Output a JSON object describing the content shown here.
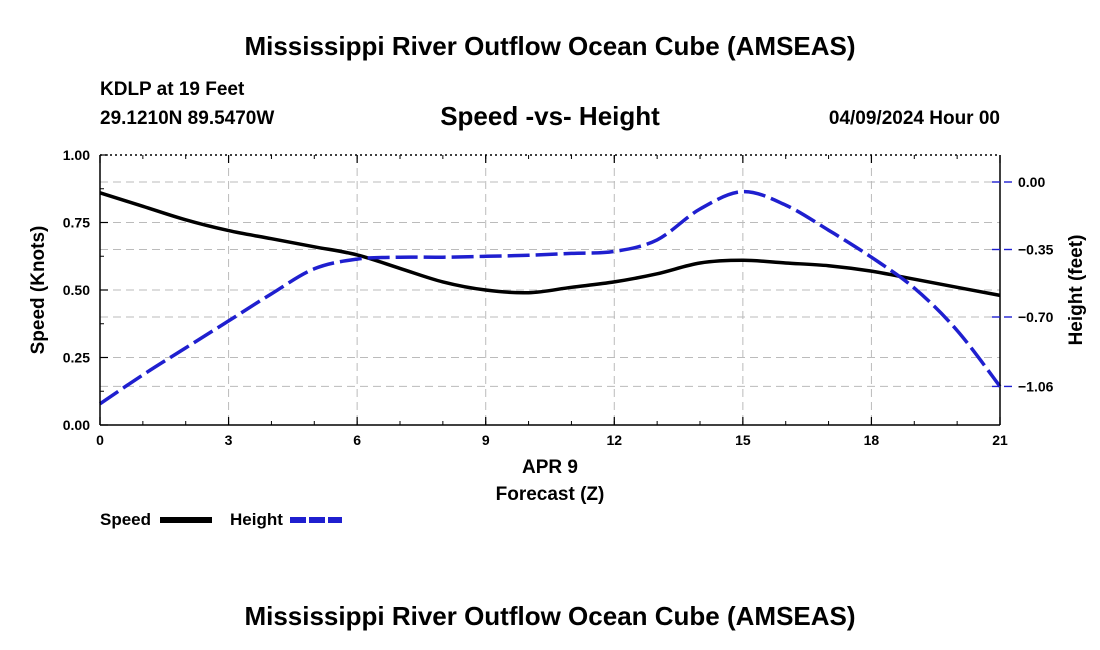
{
  "page": {
    "title_top": "Mississippi River Outflow Ocean Cube (AMSEAS)",
    "title_bottom": "Mississippi River Outflow Ocean Cube (AMSEAS)",
    "station": "KDLP at 19 Feet",
    "location": "29.1210N  89.5470W",
    "datetime": "04/09/2024 Hour 00"
  },
  "chart_data": {
    "type": "line",
    "title": "Speed -vs- Height",
    "xlabel_date": "APR 9",
    "xlabel": "Forecast (Z)",
    "ylabel": "Speed (Knots)",
    "y2label": "Height (feet)",
    "x_ticks": [
      "0",
      "3",
      "6",
      "9",
      "12",
      "15",
      "18",
      "21"
    ],
    "y_ticks": [
      "0.00",
      "0.25",
      "0.50",
      "0.75",
      "1.00"
    ],
    "y2_ticks": [
      "0.00",
      "−0.35",
      "−0.70",
      "−1.06"
    ],
    "y2_tick_values": [
      0.0,
      -0.35,
      -0.7,
      -1.06
    ],
    "xlim": [
      0,
      21
    ],
    "ylim": [
      0,
      1
    ],
    "y2lim": [
      -1.26,
      0.14
    ],
    "grid": true,
    "legend_position": "bottom-left",
    "series": [
      {
        "name": "Speed",
        "axis": "left",
        "color": "#000000",
        "style": "solid",
        "x": [
          0,
          1,
          2,
          3,
          4,
          5,
          6,
          7,
          8,
          9,
          10,
          11,
          12,
          13,
          14,
          15,
          16,
          17,
          18,
          19,
          20,
          21
        ],
        "values": [
          0.86,
          0.81,
          0.76,
          0.72,
          0.69,
          0.66,
          0.63,
          0.58,
          0.53,
          0.5,
          0.49,
          0.51,
          0.53,
          0.56,
          0.6,
          0.61,
          0.6,
          0.59,
          0.57,
          0.54,
          0.51,
          0.48
        ]
      },
      {
        "name": "Height",
        "axis": "right",
        "color": "#1f1fcf",
        "style": "dashed",
        "x": [
          0,
          1,
          2,
          3,
          4,
          5,
          6,
          7,
          8,
          9,
          10,
          11,
          12,
          13,
          14,
          15,
          16,
          17,
          18,
          19,
          20,
          21
        ],
        "values": [
          -1.15,
          -1.0,
          -0.86,
          -0.72,
          -0.58,
          -0.45,
          -0.4,
          -0.39,
          -0.39,
          -0.385,
          -0.38,
          -0.37,
          -0.36,
          -0.3,
          -0.14,
          -0.05,
          -0.12,
          -0.25,
          -0.39,
          -0.55,
          -0.77,
          -1.06
        ]
      }
    ]
  }
}
